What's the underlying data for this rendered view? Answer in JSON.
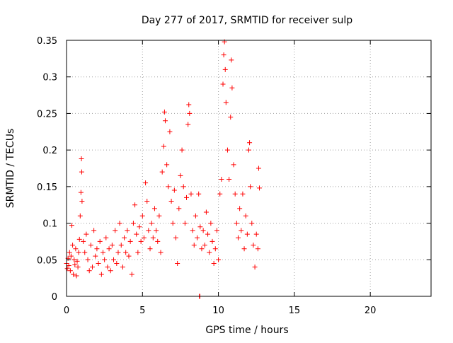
{
  "chart_data": {
    "type": "scatter",
    "title": "Day 277 of 2017, SRMTID for receiver sulp",
    "xlabel": "GPS time / hours",
    "ylabel": "SRMTID / TECUs",
    "xlim": [
      0,
      24
    ],
    "ylim": [
      0,
      0.35
    ],
    "x_ticks": [
      0,
      5,
      10,
      15,
      20
    ],
    "x_tick_labels": [
      "0",
      "5",
      "10",
      "15",
      "20"
    ],
    "y_ticks": [
      0,
      0.05,
      0.1,
      0.15,
      0.2,
      0.25,
      0.3,
      0.35
    ],
    "y_tick_labels": [
      "0",
      "0.05",
      "0.1",
      "0.15",
      "0.2",
      "0.25",
      "0.3",
      "0.35"
    ],
    "grid": true,
    "marker": "+",
    "series": [
      {
        "name": "SRMTID",
        "color": "#ff0000",
        "points": [
          [
            0.0,
            0.045
          ],
          [
            0.05,
            0.038
          ],
          [
            0.1,
            0.052
          ],
          [
            0.15,
            0.042
          ],
          [
            0.2,
            0.06
          ],
          [
            0.25,
            0.035
          ],
          [
            0.3,
            0.055
          ],
          [
            0.35,
            0.097
          ],
          [
            0.4,
            0.07
          ],
          [
            0.45,
            0.03
          ],
          [
            0.5,
            0.05
          ],
          [
            0.55,
            0.043
          ],
          [
            0.6,
            0.065
          ],
          [
            0.65,
            0.028
          ],
          [
            0.7,
            0.048
          ],
          [
            0.75,
            0.04
          ],
          [
            0.8,
            0.06
          ],
          [
            0.85,
            0.078
          ],
          [
            0.9,
            0.11
          ],
          [
            0.95,
            0.142
          ],
          [
            0.98,
            0.188
          ],
          [
            1.0,
            0.17
          ],
          [
            1.02,
            0.13
          ],
          [
            1.1,
            0.075
          ],
          [
            1.2,
            0.06
          ],
          [
            1.3,
            0.085
          ],
          [
            1.4,
            0.05
          ],
          [
            1.5,
            0.035
          ],
          [
            1.6,
            0.07
          ],
          [
            1.7,
            0.04
          ],
          [
            1.8,
            0.09
          ],
          [
            1.9,
            0.055
          ],
          [
            2.0,
            0.065
          ],
          [
            2.1,
            0.045
          ],
          [
            2.2,
            0.075
          ],
          [
            2.3,
            0.03
          ],
          [
            2.4,
            0.06
          ],
          [
            2.5,
            0.05
          ],
          [
            2.6,
            0.08
          ],
          [
            2.7,
            0.04
          ],
          [
            2.8,
            0.065
          ],
          [
            2.9,
            0.035
          ],
          [
            3.0,
            0.07
          ],
          [
            3.1,
            0.05
          ],
          [
            3.2,
            0.09
          ],
          [
            3.3,
            0.045
          ],
          [
            3.4,
            0.06
          ],
          [
            3.5,
            0.1
          ],
          [
            3.6,
            0.07
          ],
          [
            3.7,
            0.04
          ],
          [
            3.8,
            0.08
          ],
          [
            3.9,
            0.06
          ],
          [
            4.0,
            0.09
          ],
          [
            4.1,
            0.055
          ],
          [
            4.2,
            0.075
          ],
          [
            4.3,
            0.03
          ],
          [
            4.4,
            0.1
          ],
          [
            4.5,
            0.125
          ],
          [
            4.6,
            0.085
          ],
          [
            4.7,
            0.06
          ],
          [
            4.8,
            0.095
          ],
          [
            4.9,
            0.075
          ],
          [
            5.0,
            0.11
          ],
          [
            5.1,
            0.08
          ],
          [
            5.2,
            0.155
          ],
          [
            5.3,
            0.13
          ],
          [
            5.4,
            0.09
          ],
          [
            5.5,
            0.065
          ],
          [
            5.6,
            0.1
          ],
          [
            5.7,
            0.08
          ],
          [
            5.8,
            0.12
          ],
          [
            5.9,
            0.09
          ],
          [
            6.0,
            0.075
          ],
          [
            6.1,
            0.11
          ],
          [
            6.2,
            0.06
          ],
          [
            6.3,
            0.17
          ],
          [
            6.4,
            0.205
          ],
          [
            6.45,
            0.252
          ],
          [
            6.5,
            0.24
          ],
          [
            6.6,
            0.18
          ],
          [
            6.7,
            0.15
          ],
          [
            6.8,
            0.225
          ],
          [
            6.9,
            0.13
          ],
          [
            7.0,
            0.1
          ],
          [
            7.1,
            0.145
          ],
          [
            7.2,
            0.08
          ],
          [
            7.3,
            0.045
          ],
          [
            7.4,
            0.12
          ],
          [
            7.5,
            0.165
          ],
          [
            7.6,
            0.2
          ],
          [
            7.7,
            0.15
          ],
          [
            7.8,
            0.1
          ],
          [
            7.9,
            0.135
          ],
          [
            8.0,
            0.235
          ],
          [
            8.05,
            0.262
          ],
          [
            8.1,
            0.25
          ],
          [
            8.2,
            0.14
          ],
          [
            8.3,
            0.09
          ],
          [
            8.4,
            0.07
          ],
          [
            8.5,
            0.11
          ],
          [
            8.6,
            0.08
          ],
          [
            8.7,
            0.14
          ],
          [
            8.8,
            0.095
          ],
          [
            8.9,
            0.065
          ],
          [
            9.0,
            0.09
          ],
          [
            9.1,
            0.07
          ],
          [
            9.2,
            0.115
          ],
          [
            9.3,
            0.085
          ],
          [
            9.4,
            0.06
          ],
          [
            9.5,
            0.1
          ],
          [
            9.6,
            0.075
          ],
          [
            9.7,
            0.045
          ],
          [
            9.8,
            0.065
          ],
          [
            9.9,
            0.09
          ],
          [
            10.0,
            0.05
          ],
          [
            10.1,
            0.14
          ],
          [
            10.2,
            0.16
          ],
          [
            10.3,
            0.29
          ],
          [
            10.35,
            0.33
          ],
          [
            10.4,
            0.348
          ],
          [
            10.45,
            0.31
          ],
          [
            10.5,
            0.265
          ],
          [
            10.6,
            0.2
          ],
          [
            10.7,
            0.16
          ],
          [
            10.8,
            0.245
          ],
          [
            10.85,
            0.323
          ],
          [
            10.9,
            0.285
          ],
          [
            11.0,
            0.18
          ],
          [
            11.1,
            0.14
          ],
          [
            11.2,
            0.1
          ],
          [
            11.3,
            0.08
          ],
          [
            11.4,
            0.12
          ],
          [
            11.5,
            0.09
          ],
          [
            11.6,
            0.14
          ],
          [
            11.7,
            0.065
          ],
          [
            11.8,
            0.11
          ],
          [
            11.9,
            0.085
          ],
          [
            12.0,
            0.2
          ],
          [
            12.05,
            0.21
          ],
          [
            12.1,
            0.15
          ],
          [
            12.2,
            0.1
          ],
          [
            12.3,
            0.07
          ],
          [
            12.4,
            0.04
          ],
          [
            12.5,
            0.085
          ],
          [
            12.6,
            0.065
          ],
          [
            12.65,
            0.175
          ],
          [
            12.7,
            0.148
          ],
          [
            8.75,
            0.0
          ],
          [
            8.78,
            0.0
          ]
        ]
      }
    ]
  }
}
